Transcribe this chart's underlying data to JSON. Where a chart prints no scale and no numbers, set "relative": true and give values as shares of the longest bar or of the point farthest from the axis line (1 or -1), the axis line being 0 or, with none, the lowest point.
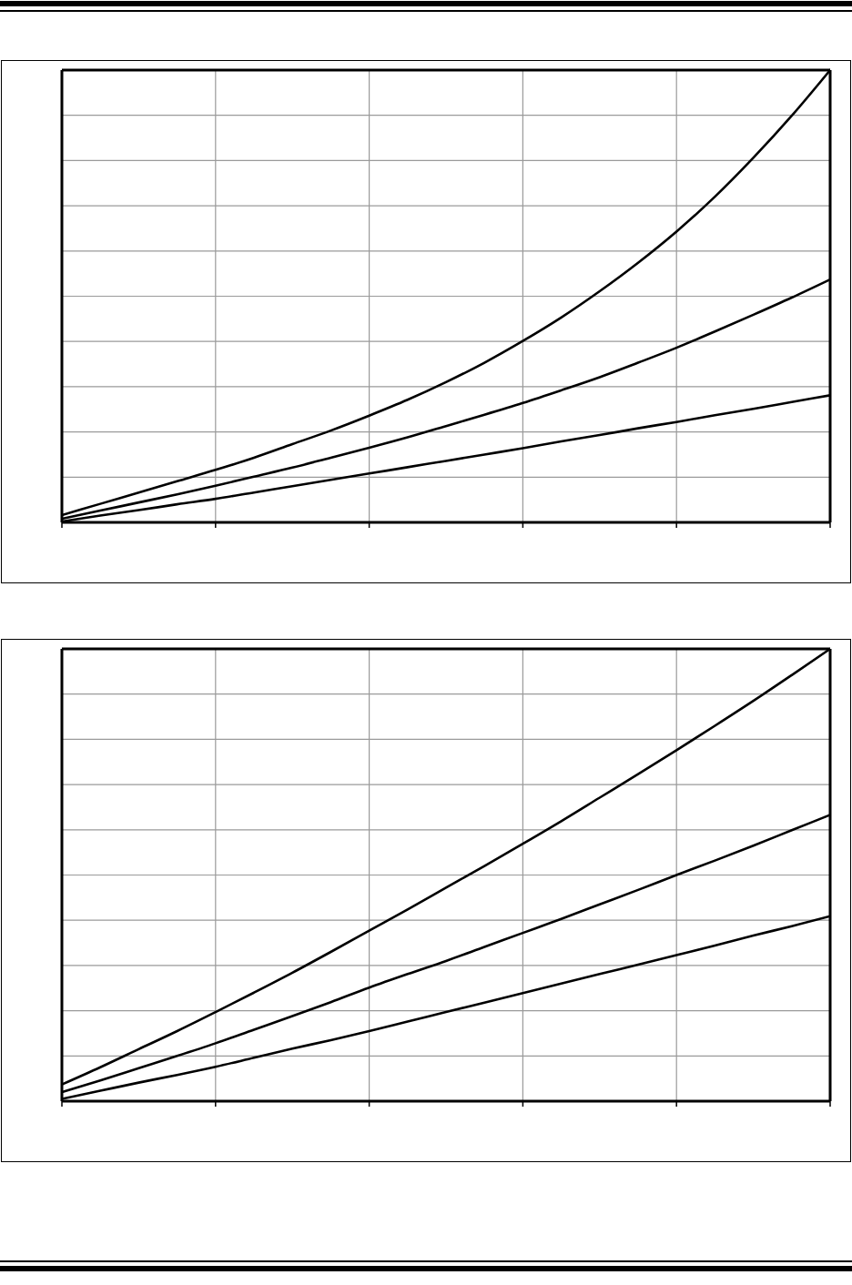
{
  "chart_data": [
    {
      "type": "line",
      "relative": true,
      "grid": true,
      "categories": [
        null,
        null,
        null,
        null,
        null,
        null,
        null,
        null,
        null,
        null,
        null,
        null,
        null,
        null,
        null,
        null,
        null,
        null,
        null,
        null,
        null
      ],
      "series": [
        {
          "color": "#000000",
          "values": [
            0.016,
            0.041,
            0.066,
            0.091,
            0.116,
            0.143,
            0.173,
            0.203,
            0.236,
            0.271,
            0.31,
            0.353,
            0.401,
            0.453,
            0.511,
            0.574,
            0.643,
            0.72,
            0.806,
            0.899,
            1
          ]
        },
        {
          "color": "#000000",
          "values": [
            0.008,
            0.026,
            0.044,
            0.062,
            0.081,
            0.101,
            0.121,
            0.143,
            0.165,
            0.188,
            0.213,
            0.238,
            0.264,
            0.292,
            0.321,
            0.353,
            0.386,
            0.422,
            0.459,
            0.497,
            0.537
          ]
        },
        {
          "color": "#000000",
          "values": [
            0.002,
            0.015,
            0.027,
            0.04,
            0.052,
            0.066,
            0.08,
            0.094,
            0.108,
            0.122,
            0.136,
            0.15,
            0.164,
            0.179,
            0.193,
            0.208,
            0.222,
            0.237,
            0.251,
            0.266,
            0.281
          ]
        }
      ]
    },
    {
      "type": "line",
      "relative": true,
      "grid": true,
      "categories": [
        null,
        null,
        null,
        null,
        null,
        null,
        null,
        null,
        null,
        null,
        null,
        null,
        null,
        null,
        null,
        null,
        null,
        null,
        null,
        null,
        null
      ],
      "series": [
        {
          "color": "#000000",
          "values": [
            0.037,
            0.075,
            0.115,
            0.155,
            0.197,
            0.24,
            0.284,
            0.33,
            0.377,
            0.424,
            0.472,
            0.52,
            0.569,
            0.619,
            0.671,
            0.723,
            0.776,
            0.83,
            0.885,
            0.942,
            1
          ]
        },
        {
          "color": "#000000",
          "values": [
            0.02,
            0.046,
            0.073,
            0.1,
            0.128,
            0.158,
            0.188,
            0.219,
            0.251,
            0.281,
            0.31,
            0.341,
            0.372,
            0.403,
            0.435,
            0.467,
            0.5,
            0.532,
            0.565,
            0.599,
            0.633
          ]
        },
        {
          "color": "#000000",
          "values": [
            0.005,
            0.023,
            0.041,
            0.058,
            0.076,
            0.096,
            0.116,
            0.135,
            0.155,
            0.176,
            0.197,
            0.218,
            0.239,
            0.26,
            0.281,
            0.302,
            0.323,
            0.344,
            0.366,
            0.387,
            0.409
          ]
        }
      ]
    }
  ]
}
